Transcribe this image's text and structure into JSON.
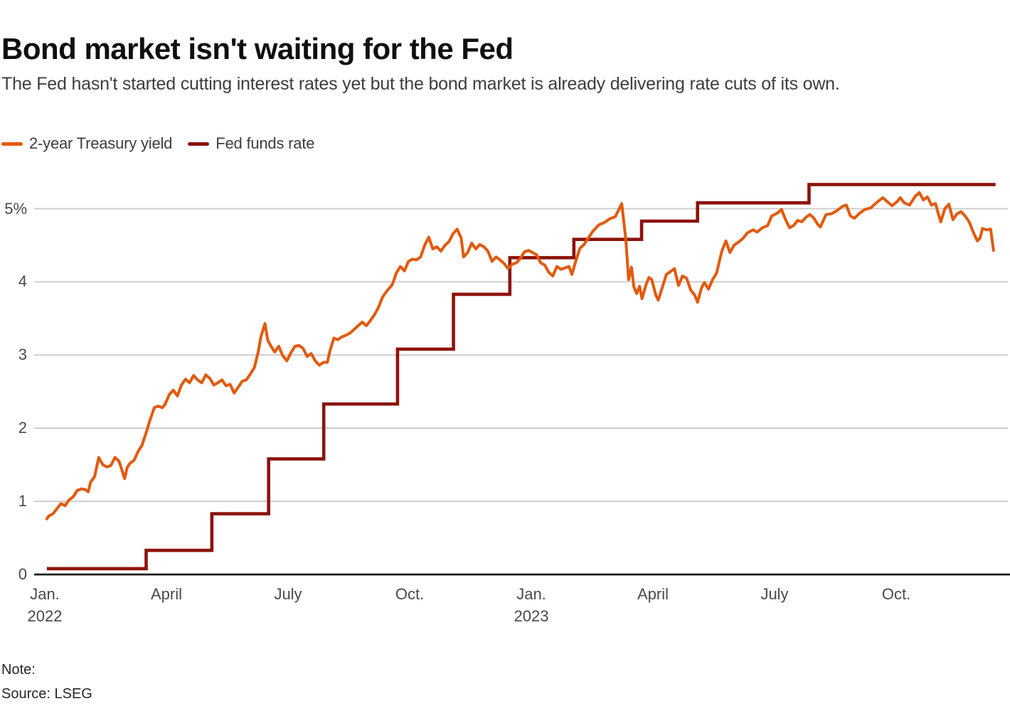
{
  "header": {
    "title": "Bond market isn't waiting for the Fed",
    "subtitle": "The Fed hasn't started cutting interest rates yet but the bond market is already delivering rate cuts of its own."
  },
  "legend": [
    {
      "label": "2-year Treasury yield",
      "color": "#e25a0d"
    },
    {
      "label": "Fed funds rate",
      "color": "#8c130b"
    }
  ],
  "footer": {
    "note_label": "Note:",
    "source": "Source: LSEG"
  },
  "chart_data": {
    "type": "line",
    "title": "Bond market isn't waiting for the Fed",
    "xlabel": "",
    "ylabel": "",
    "x_unit": "months since Jan 2022",
    "xlim": [
      0,
      23.8
    ],
    "ylim": [
      0,
      5.5
    ],
    "grid": true,
    "legend_position": "top-left",
    "colors": {
      "treasury": "#e25a0d",
      "fed_funds": "#8c130b",
      "gridline": "#c9c9c9",
      "baseline": "#1c1c1c"
    },
    "y_ticks": [
      {
        "v": 0,
        "label": "0"
      },
      {
        "v": 1,
        "label": "1"
      },
      {
        "v": 2,
        "label": "2"
      },
      {
        "v": 3,
        "label": "3"
      },
      {
        "v": 4,
        "label": "4"
      },
      {
        "v": 5,
        "label": "5%"
      }
    ],
    "x_ticks": [
      {
        "m": 0,
        "label": "Jan.",
        "year": "2022"
      },
      {
        "m": 3,
        "label": "April",
        "year": ""
      },
      {
        "m": 6,
        "label": "July",
        "year": ""
      },
      {
        "m": 9,
        "label": "Oct.",
        "year": ""
      },
      {
        "m": 12,
        "label": "Jan.",
        "year": "2023"
      },
      {
        "m": 15,
        "label": "April",
        "year": ""
      },
      {
        "m": 18,
        "label": "July",
        "year": ""
      },
      {
        "m": 21,
        "label": "Oct.",
        "year": ""
      }
    ],
    "series": [
      {
        "name": "Fed funds rate",
        "color": "#8c130b",
        "type": "step",
        "end_m": 23.45,
        "points": [
          [
            0.05,
            0.08
          ],
          [
            2.5,
            0.33
          ],
          [
            4.12,
            0.83
          ],
          [
            5.52,
            1.58
          ],
          [
            6.88,
            2.33
          ],
          [
            8.7,
            3.08
          ],
          [
            10.08,
            3.83
          ],
          [
            11.47,
            4.33
          ],
          [
            13.05,
            4.58
          ],
          [
            14.72,
            4.83
          ],
          [
            16.1,
            5.08
          ],
          [
            18.85,
            5.33
          ]
        ]
      },
      {
        "name": "2-year Treasury yield",
        "color": "#e25a0d",
        "type": "line",
        "points": [
          [
            0.05,
            0.76
          ],
          [
            0.1,
            0.8
          ],
          [
            0.2,
            0.83
          ],
          [
            0.3,
            0.9
          ],
          [
            0.4,
            0.97
          ],
          [
            0.5,
            0.94
          ],
          [
            0.6,
            1.02
          ],
          [
            0.7,
            1.06
          ],
          [
            0.8,
            1.15
          ],
          [
            0.9,
            1.17
          ],
          [
            1.0,
            1.16
          ],
          [
            1.07,
            1.13
          ],
          [
            1.13,
            1.26
          ],
          [
            1.23,
            1.34
          ],
          [
            1.33,
            1.6
          ],
          [
            1.43,
            1.5
          ],
          [
            1.53,
            1.47
          ],
          [
            1.63,
            1.49
          ],
          [
            1.73,
            1.6
          ],
          [
            1.83,
            1.55
          ],
          [
            1.9,
            1.43
          ],
          [
            1.97,
            1.31
          ],
          [
            2.03,
            1.46
          ],
          [
            2.1,
            1.52
          ],
          [
            2.2,
            1.56
          ],
          [
            2.3,
            1.68
          ],
          [
            2.4,
            1.77
          ],
          [
            2.5,
            1.94
          ],
          [
            2.6,
            2.12
          ],
          [
            2.7,
            2.28
          ],
          [
            2.8,
            2.3
          ],
          [
            2.9,
            2.28
          ],
          [
            2.97,
            2.33
          ],
          [
            3.07,
            2.46
          ],
          [
            3.17,
            2.52
          ],
          [
            3.27,
            2.44
          ],
          [
            3.37,
            2.59
          ],
          [
            3.47,
            2.67
          ],
          [
            3.57,
            2.62
          ],
          [
            3.67,
            2.72
          ],
          [
            3.77,
            2.66
          ],
          [
            3.87,
            2.62
          ],
          [
            3.97,
            2.73
          ],
          [
            4.07,
            2.68
          ],
          [
            4.17,
            2.59
          ],
          [
            4.27,
            2.62
          ],
          [
            4.37,
            2.66
          ],
          [
            4.47,
            2.58
          ],
          [
            4.57,
            2.6
          ],
          [
            4.67,
            2.48
          ],
          [
            4.77,
            2.56
          ],
          [
            4.87,
            2.64
          ],
          [
            4.97,
            2.66
          ],
          [
            5.07,
            2.74
          ],
          [
            5.17,
            2.83
          ],
          [
            5.27,
            3.06
          ],
          [
            5.33,
            3.25
          ],
          [
            5.43,
            3.43
          ],
          [
            5.5,
            3.2
          ],
          [
            5.57,
            3.13
          ],
          [
            5.67,
            3.04
          ],
          [
            5.77,
            3.12
          ],
          [
            5.87,
            2.99
          ],
          [
            5.97,
            2.92
          ],
          [
            6.07,
            3.03
          ],
          [
            6.17,
            3.12
          ],
          [
            6.27,
            3.13
          ],
          [
            6.37,
            3.09
          ],
          [
            6.47,
            2.98
          ],
          [
            6.57,
            3.02
          ],
          [
            6.67,
            2.92
          ],
          [
            6.77,
            2.86
          ],
          [
            6.87,
            2.9
          ],
          [
            6.97,
            2.9
          ],
          [
            7.03,
            3.05
          ],
          [
            7.13,
            3.23
          ],
          [
            7.23,
            3.21
          ],
          [
            7.33,
            3.25
          ],
          [
            7.43,
            3.27
          ],
          [
            7.53,
            3.3
          ],
          [
            7.63,
            3.35
          ],
          [
            7.73,
            3.4
          ],
          [
            7.83,
            3.45
          ],
          [
            7.93,
            3.4
          ],
          [
            8.03,
            3.47
          ],
          [
            8.13,
            3.55
          ],
          [
            8.23,
            3.65
          ],
          [
            8.33,
            3.79
          ],
          [
            8.43,
            3.87
          ],
          [
            8.57,
            3.96
          ],
          [
            8.67,
            4.12
          ],
          [
            8.77,
            4.21
          ],
          [
            8.87,
            4.15
          ],
          [
            8.97,
            4.28
          ],
          [
            9.07,
            4.31
          ],
          [
            9.17,
            4.3
          ],
          [
            9.27,
            4.34
          ],
          [
            9.37,
            4.5
          ],
          [
            9.47,
            4.61
          ],
          [
            9.57,
            4.45
          ],
          [
            9.67,
            4.48
          ],
          [
            9.77,
            4.42
          ],
          [
            9.87,
            4.5
          ],
          [
            9.97,
            4.55
          ],
          [
            10.07,
            4.66
          ],
          [
            10.17,
            4.72
          ],
          [
            10.27,
            4.6
          ],
          [
            10.33,
            4.34
          ],
          [
            10.43,
            4.4
          ],
          [
            10.53,
            4.53
          ],
          [
            10.63,
            4.45
          ],
          [
            10.73,
            4.51
          ],
          [
            10.83,
            4.48
          ],
          [
            10.93,
            4.42
          ],
          [
            11.03,
            4.28
          ],
          [
            11.13,
            4.34
          ],
          [
            11.23,
            4.3
          ],
          [
            11.33,
            4.25
          ],
          [
            11.43,
            4.18
          ],
          [
            11.53,
            4.24
          ],
          [
            11.63,
            4.26
          ],
          [
            11.73,
            4.32
          ],
          [
            11.83,
            4.41
          ],
          [
            11.93,
            4.43
          ],
          [
            12.03,
            4.4
          ],
          [
            12.13,
            4.37
          ],
          [
            12.23,
            4.26
          ],
          [
            12.33,
            4.23
          ],
          [
            12.43,
            4.13
          ],
          [
            12.53,
            4.08
          ],
          [
            12.63,
            4.21
          ],
          [
            12.73,
            4.17
          ],
          [
            12.83,
            4.19
          ],
          [
            12.93,
            4.21
          ],
          [
            13.0,
            4.1
          ],
          [
            13.1,
            4.29
          ],
          [
            13.2,
            4.46
          ],
          [
            13.3,
            4.51
          ],
          [
            13.43,
            4.62
          ],
          [
            13.53,
            4.7
          ],
          [
            13.67,
            4.78
          ],
          [
            13.8,
            4.81
          ],
          [
            13.93,
            4.86
          ],
          [
            14.07,
            4.89
          ],
          [
            14.17,
            5.0
          ],
          [
            14.23,
            5.07
          ],
          [
            14.33,
            4.59
          ],
          [
            14.4,
            4.03
          ],
          [
            14.47,
            4.2
          ],
          [
            14.53,
            3.93
          ],
          [
            14.6,
            3.84
          ],
          [
            14.67,
            3.94
          ],
          [
            14.73,
            3.77
          ],
          [
            14.83,
            3.96
          ],
          [
            14.9,
            4.06
          ],
          [
            14.97,
            4.03
          ],
          [
            15.07,
            3.82
          ],
          [
            15.13,
            3.75
          ],
          [
            15.23,
            3.92
          ],
          [
            15.33,
            4.1
          ],
          [
            15.43,
            4.14
          ],
          [
            15.53,
            4.18
          ],
          [
            15.63,
            3.95
          ],
          [
            15.73,
            4.08
          ],
          [
            15.83,
            4.05
          ],
          [
            15.93,
            3.89
          ],
          [
            16.03,
            3.82
          ],
          [
            16.1,
            3.72
          ],
          [
            16.2,
            3.92
          ],
          [
            16.27,
            3.99
          ],
          [
            16.37,
            3.9
          ],
          [
            16.47,
            4.03
          ],
          [
            16.57,
            4.12
          ],
          [
            16.63,
            4.26
          ],
          [
            16.7,
            4.42
          ],
          [
            16.8,
            4.56
          ],
          [
            16.9,
            4.4
          ],
          [
            17.0,
            4.5
          ],
          [
            17.13,
            4.55
          ],
          [
            17.23,
            4.6
          ],
          [
            17.33,
            4.67
          ],
          [
            17.47,
            4.71
          ],
          [
            17.57,
            4.68
          ],
          [
            17.7,
            4.74
          ],
          [
            17.83,
            4.77
          ],
          [
            17.93,
            4.9
          ],
          [
            18.07,
            4.94
          ],
          [
            18.17,
            4.99
          ],
          [
            18.27,
            4.85
          ],
          [
            18.37,
            4.74
          ],
          [
            18.47,
            4.77
          ],
          [
            18.57,
            4.84
          ],
          [
            18.67,
            4.82
          ],
          [
            18.77,
            4.88
          ],
          [
            18.87,
            4.92
          ],
          [
            18.97,
            4.87
          ],
          [
            19.07,
            4.78
          ],
          [
            19.13,
            4.75
          ],
          [
            19.27,
            4.92
          ],
          [
            19.4,
            4.93
          ],
          [
            19.53,
            4.97
          ],
          [
            19.67,
            5.03
          ],
          [
            19.77,
            5.05
          ],
          [
            19.87,
            4.9
          ],
          [
            19.97,
            4.87
          ],
          [
            20.1,
            4.94
          ],
          [
            20.23,
            4.99
          ],
          [
            20.37,
            5.01
          ],
          [
            20.53,
            5.09
          ],
          [
            20.67,
            5.15
          ],
          [
            20.77,
            5.1
          ],
          [
            20.9,
            5.04
          ],
          [
            21.03,
            5.1
          ],
          [
            21.1,
            5.15
          ],
          [
            21.2,
            5.08
          ],
          [
            21.33,
            5.05
          ],
          [
            21.47,
            5.17
          ],
          [
            21.57,
            5.22
          ],
          [
            21.67,
            5.12
          ],
          [
            21.77,
            5.16
          ],
          [
            21.87,
            5.05
          ],
          [
            21.97,
            5.07
          ],
          [
            22.03,
            4.95
          ],
          [
            22.1,
            4.82
          ],
          [
            22.2,
            5.0
          ],
          [
            22.3,
            5.06
          ],
          [
            22.4,
            4.85
          ],
          [
            22.5,
            4.93
          ],
          [
            22.6,
            4.96
          ],
          [
            22.7,
            4.9
          ],
          [
            22.8,
            4.82
          ],
          [
            22.9,
            4.68
          ],
          [
            23.0,
            4.56
          ],
          [
            23.07,
            4.6
          ],
          [
            23.13,
            4.73
          ],
          [
            23.23,
            4.71
          ],
          [
            23.33,
            4.72
          ],
          [
            23.4,
            4.43
          ]
        ]
      }
    ]
  }
}
